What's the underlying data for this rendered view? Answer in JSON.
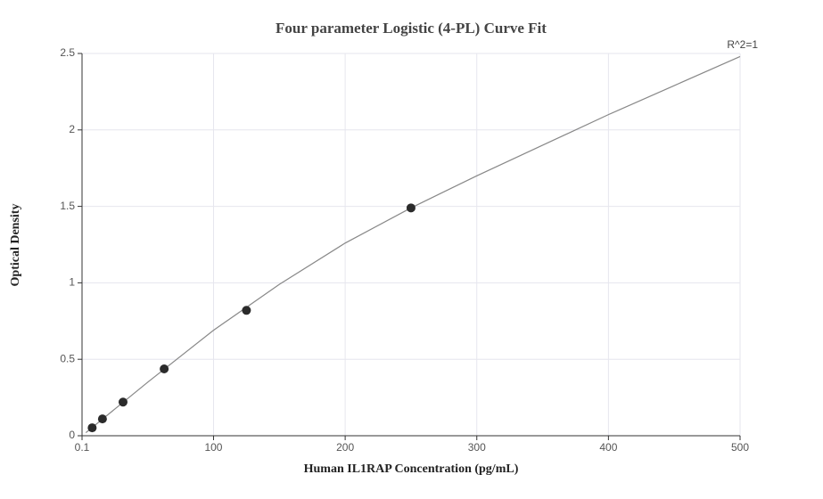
{
  "chart_data": {
    "type": "scatter",
    "title": "Four parameter Logistic (4-PL) Curve Fit",
    "x_label": "Human IL1RAP Concentration (pg/mL)",
    "y_label": "Optical Density",
    "annotation": "R^2=1",
    "x": [
      7.8,
      15.6,
      31.25,
      62.5,
      125,
      250
    ],
    "values": [
      0.052,
      0.11,
      0.22,
      0.437,
      0.82,
      1.49
    ],
    "color": "#2b2b2b",
    "fit": {
      "x": [
        3,
        50,
        100,
        150,
        200,
        250,
        300,
        350,
        400,
        450,
        500
      ],
      "y": [
        0.02,
        0.35,
        0.69,
        0.99,
        1.26,
        1.49,
        1.7,
        1.9,
        2.1,
        2.29,
        2.48
      ],
      "color": "#888888"
    },
    "xlim": [
      0.1,
      500
    ],
    "ylim": [
      0,
      2.5
    ],
    "xticks": [
      0.1,
      100,
      200,
      300,
      400,
      500
    ],
    "yticks": [
      0,
      0.5,
      1,
      1.5,
      2,
      2.5
    ],
    "grid": true
  }
}
